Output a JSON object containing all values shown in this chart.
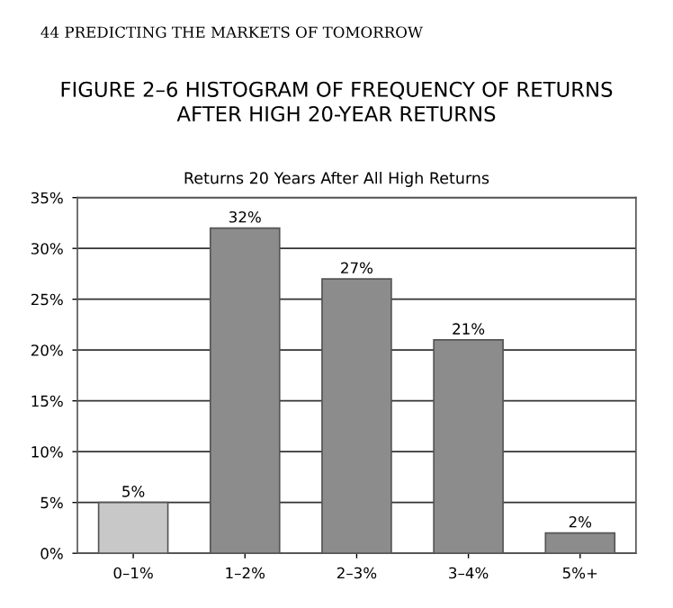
{
  "chart_data": {
    "type": "bar",
    "title": "FIGURE 2–6 HISTOGRAM OF FREQUENCY OF RETURNS\nAFTER HIGH 20-YEAR RETURNS",
    "subtitle": "Returns 20 Years After All High Returns",
    "annotations": [
      "44 PREDICTING THE MARKETS OF TOMORROW"
    ],
    "categories": [
      "0–1%",
      "1–2%",
      "2–3%",
      "3–4%",
      "5%+"
    ],
    "values": [
      5,
      32,
      27,
      21,
      2
    ],
    "colors": [
      "#c8c8c8",
      "#8c8c8c",
      "#8c8c8c",
      "#8c8c8c",
      "#8c8c8c"
    ],
    "ylim": [
      0,
      35
    ],
    "yticks": [
      {
        "value": 0,
        "label": "0%"
      },
      {
        "value": 5,
        "label": "5%"
      },
      {
        "value": 10,
        "label": "10%"
      },
      {
        "value": 15,
        "label": "15%"
      },
      {
        "value": 20,
        "label": "20%"
      },
      {
        "value": 25,
        "label": "25%"
      },
      {
        "value": 30,
        "label": "30%"
      },
      {
        "value": 35,
        "label": "35%"
      }
    ],
    "value_labels": [
      "5%",
      "32%",
      "27%",
      "21%",
      "2%"
    ],
    "grid": "y"
  }
}
